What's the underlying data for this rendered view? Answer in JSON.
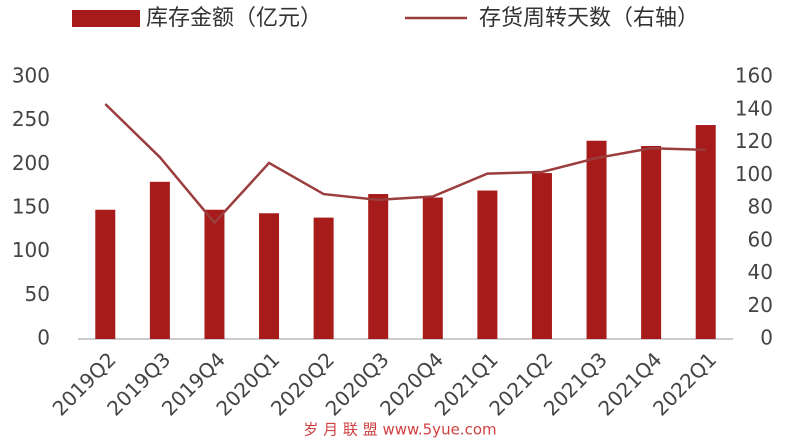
{
  "chart_data": {
    "type": "bar-line",
    "categories": [
      "2019Q2",
      "2019Q3",
      "2019Q4",
      "2020Q1",
      "2020Q2",
      "2020Q3",
      "2020Q4",
      "2021Q1",
      "2021Q2",
      "2021Q3",
      "2021Q4",
      "2022Q1"
    ],
    "series": [
      {
        "name": "库存金额（亿元）",
        "type": "bar",
        "color": "#a71b1b",
        "values": [
          148,
          180,
          148,
          144,
          139,
          166,
          162,
          170,
          190,
          227,
          221,
          245
        ]
      },
      {
        "name": "存货周转天数（右轴）",
        "type": "line",
        "axis": "y2",
        "color": "#9b3d3d",
        "values": [
          143.5,
          111,
          71,
          107.5,
          88.5,
          85,
          87,
          101,
          102,
          110.5,
          116.5,
          115.5
        ]
      }
    ],
    "ylim": [
      0,
      300
    ],
    "yticks": [
      0,
      50,
      100,
      150,
      200,
      250,
      300
    ],
    "y2lim": [
      0,
      160
    ],
    "y2ticks": [
      0,
      20,
      40,
      60,
      80,
      100,
      120,
      140,
      160
    ],
    "grid": false,
    "legend": "top",
    "watermark": "岁 月 联 盟  www.5yue.com"
  }
}
